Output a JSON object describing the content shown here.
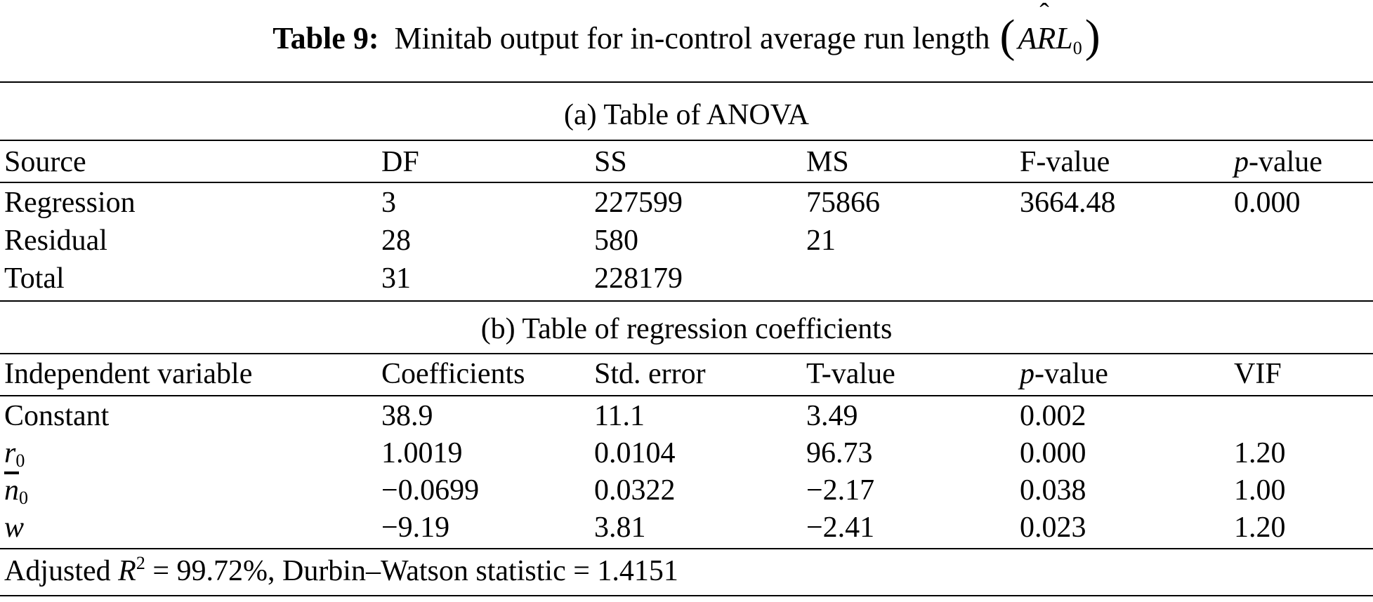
{
  "caption": {
    "label": "Table 9:",
    "text": "Minitab output for in-control average run length",
    "symbol": "ARL",
    "symbol_sub": "0",
    "open_paren": "(",
    "close_paren": ")"
  },
  "anova": {
    "title": "(a) Table of ANOVA",
    "headers": [
      "Source",
      "DF",
      "SS",
      "MS",
      "F-value",
      "p",
      "-value"
    ],
    "rows": [
      [
        "Regression",
        "3",
        "227599",
        "75866",
        "3664.48",
        "0.000"
      ],
      [
        "Residual",
        "28",
        "580",
        "21",
        "",
        ""
      ],
      [
        "Total",
        "31",
        "228179",
        "",
        "",
        ""
      ]
    ]
  },
  "coefficients": {
    "title": "(b) Table of regression coefficients",
    "headers": [
      "Independent variable",
      "Coefficients",
      "Std. error",
      "T-value",
      "p",
      "-value",
      "VIF"
    ],
    "rows": [
      {
        "var": "Constant",
        "var_sub": "",
        "values": [
          "38.9",
          "11.1",
          "3.49",
          "0.002",
          ""
        ]
      },
      {
        "var": "r",
        "var_sub": "0",
        "values": [
          "1.0019",
          "0.0104",
          "96.73",
          "0.000",
          "1.20"
        ]
      },
      {
        "var": "n",
        "var_sub": "0",
        "values": [
          "−0.0699",
          "0.0322",
          "−2.17",
          "0.038",
          "1.00"
        ]
      },
      {
        "var": "w",
        "var_sub": "",
        "values": [
          "−9.19",
          "3.81",
          "−2.41",
          "0.023",
          "1.20"
        ]
      }
    ]
  },
  "footnote": {
    "prefix": "Adjusted ",
    "r": "R",
    "sup": "2",
    "middle": " = 99.72%, Durbin–Watson statistic = 1.4151"
  }
}
